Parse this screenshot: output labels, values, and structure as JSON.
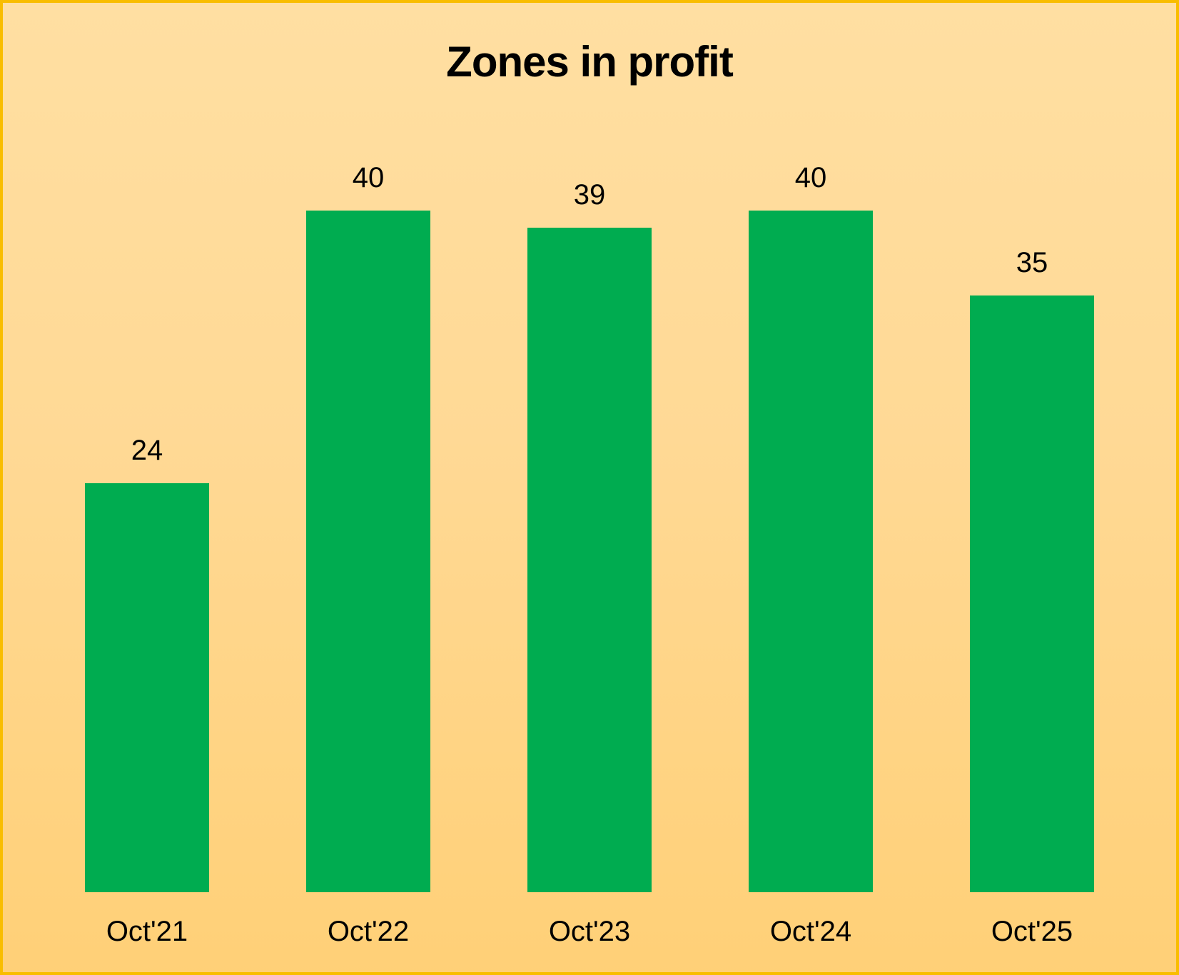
{
  "chart": {
    "title": "Zones in profit"
  },
  "chart_data": {
    "type": "bar",
    "title": "Zones in profit",
    "categories": [
      "Oct'21",
      "Oct'22",
      "Oct'23",
      "Oct'24",
      "Oct'25"
    ],
    "values": [
      24,
      40,
      39,
      40,
      35
    ],
    "xlabel": "",
    "ylabel": "",
    "ylim": [
      0,
      42
    ],
    "grid": false,
    "legend": false,
    "axes_lines": false,
    "data_labels_position": "above-bars",
    "colors": {
      "bar": "#00AC50",
      "background_top": "#FFDFA2",
      "background_bottom": "#FFD077",
      "frame_border": "#F9BD00",
      "text": "#000000"
    }
  }
}
